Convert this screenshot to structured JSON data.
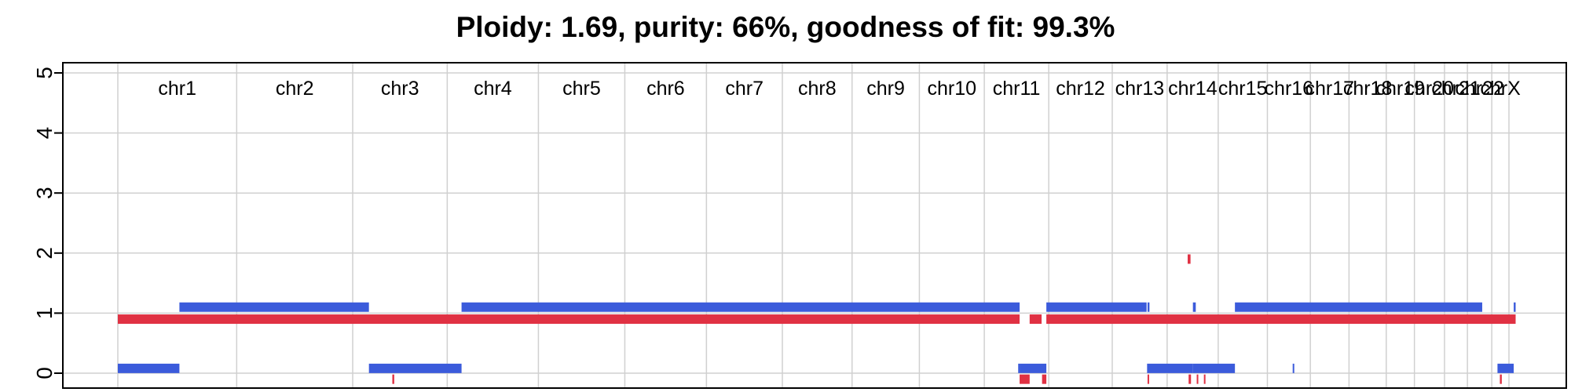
{
  "chart_data": {
    "type": "segment",
    "title": "Ploidy: 1.69, purity: 66%, goodness of fit: 99.3%",
    "ylim": [
      0,
      5
    ],
    "yticks": [
      0,
      1,
      2,
      3,
      4,
      5
    ],
    "grid": true,
    "colors": {
      "major": "#3b5bdb",
      "minor": "#e03143",
      "grid": "#d0d0d0"
    },
    "chromosomes": [
      {
        "name": "chr1",
        "length": 249
      },
      {
        "name": "chr2",
        "length": 243
      },
      {
        "name": "chr3",
        "length": 198
      },
      {
        "name": "chr4",
        "length": 191
      },
      {
        "name": "chr5",
        "length": 181
      },
      {
        "name": "chr6",
        "length": 171
      },
      {
        "name": "chr7",
        "length": 159
      },
      {
        "name": "chr8",
        "length": 146
      },
      {
        "name": "chr9",
        "length": 141
      },
      {
        "name": "chr10",
        "length": 136
      },
      {
        "name": "chr11",
        "length": 135
      },
      {
        "name": "chr12",
        "length": 133
      },
      {
        "name": "chr13",
        "length": 115
      },
      {
        "name": "chr14",
        "length": 107
      },
      {
        "name": "chr15",
        "length": 103
      },
      {
        "name": "chr16",
        "length": 90
      },
      {
        "name": "chr17",
        "length": 81
      },
      {
        "name": "chr18",
        "length": 78
      },
      {
        "name": "chr19",
        "length": 59
      },
      {
        "name": "chr20",
        "length": 63
      },
      {
        "name": "chr21",
        "length": 48
      },
      {
        "name": "chr22",
        "length": 51
      },
      {
        "name": "chrX",
        "length": 36
      }
    ],
    "series": [
      {
        "role": "major",
        "segments": [
          {
            "x0": 0,
            "x1": 129,
            "y": 0.08
          },
          {
            "x0": 129,
            "x1": 526,
            "y": 1.1
          },
          {
            "x0": 526,
            "x1": 720,
            "y": 0.08
          },
          {
            "x0": 720,
            "x1": 1889,
            "y": 1.1
          },
          {
            "x0": 1886,
            "x1": 1887,
            "y": 0.08
          },
          {
            "x0": 1889,
            "x1": 1945,
            "y": 0.08
          },
          {
            "x0": 1945,
            "x1": 2155,
            "y": 1.1
          },
          {
            "x0": 2157,
            "x1": 2161,
            "y": 1.1
          },
          {
            "x0": 2156,
            "x1": 2252,
            "y": 0.08
          },
          {
            "x0": 2252,
            "x1": 2340,
            "y": 0.08
          },
          {
            "x0": 2252,
            "x1": 2258,
            "y": 1.1
          },
          {
            "x0": 2340,
            "x1": 2858,
            "y": 1.1
          },
          {
            "x0": 2461,
            "x1": 2464,
            "y": 0.08
          },
          {
            "x0": 2890,
            "x1": 2924,
            "y": 0.08
          },
          {
            "x0": 2924,
            "x1": 2928,
            "y": 1.1
          }
        ]
      },
      {
        "role": "minor",
        "segments": [
          {
            "x0": 0,
            "x1": 1889,
            "y": 0.9
          },
          {
            "x0": 575,
            "x1": 579,
            "y": -0.1
          },
          {
            "x0": 1889,
            "x1": 1910,
            "y": -0.1
          },
          {
            "x0": 1910,
            "x1": 1935,
            "y": 0.9
          },
          {
            "x0": 1936,
            "x1": 1945,
            "y": -0.1
          },
          {
            "x0": 1945,
            "x1": 2928,
            "y": 0.9
          },
          {
            "x0": 2157,
            "x1": 2160,
            "y": -0.1
          },
          {
            "x0": 2241,
            "x1": 2247,
            "y": 1.9
          },
          {
            "x0": 2243,
            "x1": 2248,
            "y": -0.1
          },
          {
            "x0": 2260,
            "x1": 2263,
            "y": -0.1
          },
          {
            "x0": 2275,
            "x1": 2278,
            "y": -0.1
          },
          {
            "x0": 2895,
            "x1": 2899,
            "y": -0.1
          }
        ]
      }
    ]
  }
}
